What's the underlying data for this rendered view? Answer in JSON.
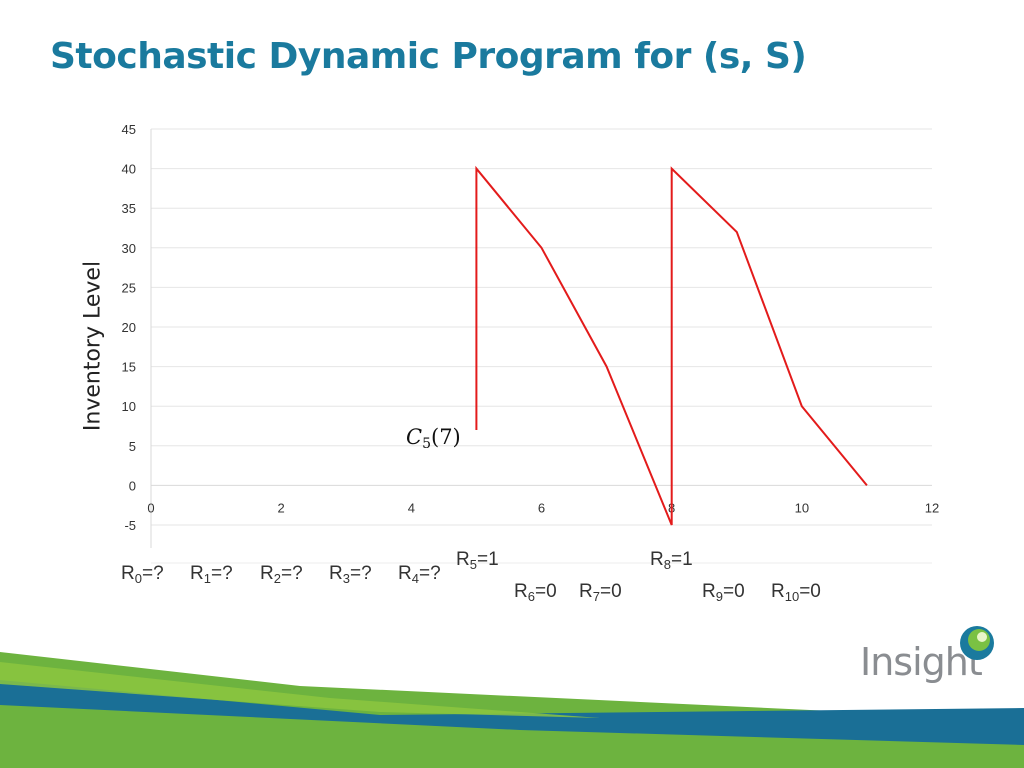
{
  "title": "Stochastic Dynamic Program for (s, S)",
  "chart_data": {
    "type": "line",
    "title": "",
    "xlabel": "",
    "ylabel": "Inventory Level",
    "xlim": [
      0,
      12
    ],
    "ylim": [
      -5,
      45
    ],
    "x_ticks": [
      0,
      2,
      4,
      6,
      8,
      10,
      12
    ],
    "y_ticks": [
      -5,
      0,
      5,
      10,
      15,
      20,
      25,
      30,
      35,
      40,
      45
    ],
    "grid": true,
    "series": [
      {
        "color": "#e31b1b",
        "points": [
          [
            5,
            7
          ],
          [
            5,
            40
          ],
          [
            6,
            30
          ],
          [
            7,
            15
          ],
          [
            8,
            -5
          ],
          [
            8,
            40
          ],
          [
            9,
            32
          ],
          [
            10,
            10
          ],
          [
            11,
            0
          ]
        ]
      }
    ],
    "annotations": {
      "cost": {
        "symbol": "C",
        "subscript": "5",
        "arg": "(7)"
      }
    }
  },
  "r_labels": [
    {
      "base": "R",
      "sub": "0",
      "rest": "=?"
    },
    {
      "base": "R",
      "sub": "1",
      "rest": "=?"
    },
    {
      "base": "R",
      "sub": "2",
      "rest": "=?"
    },
    {
      "base": "R",
      "sub": "3",
      "rest": "=?"
    },
    {
      "base": "R",
      "sub": "4",
      "rest": "=?"
    },
    {
      "base": "R",
      "sub": "5",
      "rest": "=1"
    },
    {
      "base": "R",
      "sub": "6",
      "rest": "=0"
    },
    {
      "base": "R",
      "sub": "7",
      "rest": "=0"
    },
    {
      "base": "R",
      "sub": "8",
      "rest": "=1"
    },
    {
      "base": "R",
      "sub": "9",
      "rest": "=0"
    },
    {
      "base": "R",
      "sub": "10",
      "rest": "=0"
    }
  ],
  "logo": {
    "text": "Insight"
  },
  "colors": {
    "title": "#1a7a9e",
    "line": "#e31b1b",
    "grid": "#e6e6e6",
    "green": "#6db33f",
    "blue": "#1a6f96"
  }
}
